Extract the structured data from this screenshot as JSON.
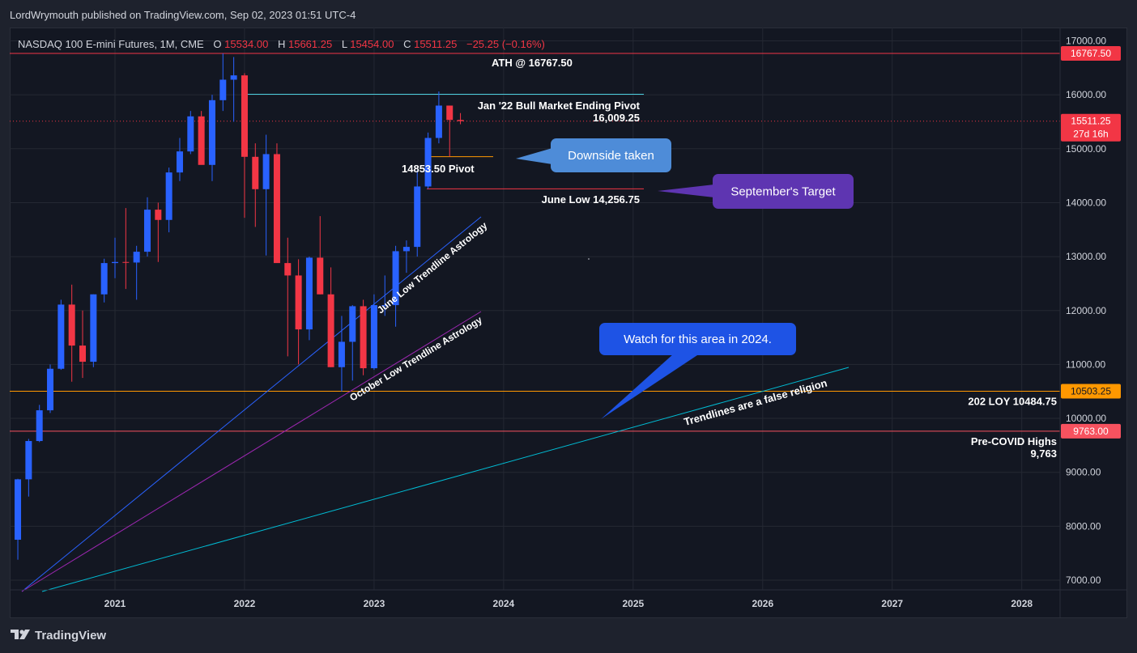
{
  "header": {
    "publisher_line": "LordWrymouth published on TradingView.com, Sep 02, 2023 01:51 UTC-4"
  },
  "legend": {
    "symbol": "NASDAQ 100 E-mini Futures, 1M, CME",
    "o_label": "O",
    "o_value": "15534.00",
    "h_label": "H",
    "h_value": "15661.25",
    "l_label": "L",
    "l_value": "15454.00",
    "c_label": "C",
    "c_value": "15511.25",
    "change": "−25.25 (−0.16%)"
  },
  "footer": {
    "brand": "TradingView",
    "logo_icon": "tradingview-logo-icon"
  },
  "colors": {
    "background": "#131722",
    "up": "#2962ff",
    "down": "#f23645",
    "text": "#d1d4dc",
    "grid": "#242833"
  },
  "chart_data": {
    "type": "candlestick",
    "title": "NASDAQ 100 E-mini Futures, 1M, CME",
    "y_axis": {
      "ticks": [
        "7000.00",
        "8000.00",
        "9000.00",
        "10000.00",
        "11000.00",
        "12000.00",
        "13000.00",
        "14000.00",
        "15000.00",
        "16000.00",
        "17000.00"
      ],
      "range": [
        6800,
        17400
      ]
    },
    "x_axis": {
      "ticks": [
        "2021",
        "2022",
        "2023",
        "2024",
        "2025",
        "2026",
        "2027",
        "2028"
      ],
      "range": [
        "2020-03",
        "2028-04"
      ]
    },
    "grid": true,
    "candles": [
      {
        "t": "2020-04",
        "o": 7750,
        "h": 8880,
        "l": 7380,
        "c": 8870
      },
      {
        "t": "2020-05",
        "o": 8870,
        "h": 9620,
        "l": 8550,
        "c": 9580
      },
      {
        "t": "2020-06",
        "o": 9580,
        "h": 10250,
        "l": 9560,
        "c": 10150
      },
      {
        "t": "2020-07",
        "o": 10150,
        "h": 11000,
        "l": 10100,
        "c": 10920
      },
      {
        "t": "2020-08",
        "o": 10920,
        "h": 12200,
        "l": 10900,
        "c": 12110
      },
      {
        "t": "2020-09",
        "o": 12110,
        "h": 12480,
        "l": 10680,
        "c": 11350
      },
      {
        "t": "2020-10",
        "o": 11350,
        "h": 12000,
        "l": 10750,
        "c": 11050
      },
      {
        "t": "2020-11",
        "o": 11050,
        "h": 12300,
        "l": 10950,
        "c": 12300
      },
      {
        "t": "2020-12",
        "o": 12300,
        "h": 12960,
        "l": 12150,
        "c": 12880
      },
      {
        "t": "2021-01",
        "o": 12880,
        "h": 13350,
        "l": 12600,
        "c": 12900
      },
      {
        "t": "2021-02",
        "o": 12900,
        "h": 13900,
        "l": 12400,
        "c": 12890
      },
      {
        "t": "2021-03",
        "o": 12890,
        "h": 13200,
        "l": 12200,
        "c": 13090
      },
      {
        "t": "2021-04",
        "o": 13090,
        "h": 14100,
        "l": 13000,
        "c": 13870
      },
      {
        "t": "2021-05",
        "o": 13870,
        "h": 14000,
        "l": 12900,
        "c": 13680
      },
      {
        "t": "2021-06",
        "o": 13680,
        "h": 14650,
        "l": 13450,
        "c": 14560
      },
      {
        "t": "2021-07",
        "o": 14560,
        "h": 15200,
        "l": 14400,
        "c": 14950
      },
      {
        "t": "2021-08",
        "o": 14950,
        "h": 15700,
        "l": 14900,
        "c": 15600
      },
      {
        "t": "2021-09",
        "o": 15600,
        "h": 15700,
        "l": 14800,
        "c": 14700
      },
      {
        "t": "2021-10",
        "o": 14700,
        "h": 16000,
        "l": 14400,
        "c": 15900
      },
      {
        "t": "2021-11",
        "o": 15900,
        "h": 16767.5,
        "l": 15700,
        "c": 16280
      },
      {
        "t": "2021-12",
        "o": 16280,
        "h": 16700,
        "l": 15500,
        "c": 16360
      },
      {
        "t": "2022-01",
        "o": 16360,
        "h": 16400,
        "l": 13720,
        "c": 14850
      },
      {
        "t": "2022-02",
        "o": 14850,
        "h": 15100,
        "l": 13550,
        "c": 14250
      },
      {
        "t": "2022-03",
        "o": 14250,
        "h": 15260,
        "l": 13020,
        "c": 14900
      },
      {
        "t": "2022-04",
        "o": 14900,
        "h": 15100,
        "l": 12900,
        "c": 12880
      },
      {
        "t": "2022-05",
        "o": 12880,
        "h": 13350,
        "l": 11150,
        "c": 12650
      },
      {
        "t": "2022-06",
        "o": 12650,
        "h": 12950,
        "l": 11000,
        "c": 11650
      },
      {
        "t": "2022-07",
        "o": 11650,
        "h": 13000,
        "l": 11450,
        "c": 12980
      },
      {
        "t": "2022-08",
        "o": 12980,
        "h": 13750,
        "l": 12300,
        "c": 12300
      },
      {
        "t": "2022-09",
        "o": 12300,
        "h": 12800,
        "l": 10950,
        "c": 10950
      },
      {
        "t": "2022-10",
        "o": 10950,
        "h": 11900,
        "l": 10500,
        "c": 11420
      },
      {
        "t": "2022-11",
        "o": 11420,
        "h": 12100,
        "l": 10700,
        "c": 12080
      },
      {
        "t": "2022-12",
        "o": 12080,
        "h": 12200,
        "l": 10800,
        "c": 10930
      },
      {
        "t": "2023-01",
        "o": 10930,
        "h": 12300,
        "l": 10900,
        "c": 12100
      },
      {
        "t": "2023-02",
        "o": 12100,
        "h": 12650,
        "l": 11900,
        "c": 12100
      },
      {
        "t": "2023-03",
        "o": 12100,
        "h": 13200,
        "l": 11700,
        "c": 13100
      },
      {
        "t": "2023-04",
        "o": 13100,
        "h": 13300,
        "l": 12700,
        "c": 13180
      },
      {
        "t": "2023-05",
        "o": 13180,
        "h": 14600,
        "l": 13000,
        "c": 14300
      },
      {
        "t": "2023-06",
        "o": 14300,
        "h": 15300,
        "l": 14256.75,
        "c": 15200
      },
      {
        "t": "2023-07",
        "o": 15200,
        "h": 16062,
        "l": 15100,
        "c": 15800
      },
      {
        "t": "2023-08",
        "o": 15800,
        "h": 15800,
        "l": 14853.5,
        "c": 15534
      },
      {
        "t": "2023-09",
        "o": 15534,
        "h": 15661.25,
        "l": 15454,
        "c": 15511.25
      }
    ],
    "levels": [
      {
        "price": 16767.5,
        "axis_label": "16767.50",
        "color": "#f23645"
      },
      {
        "price": 10503.25,
        "axis_label": "10503.25",
        "color": "#ff9800"
      },
      {
        "price": 9763,
        "axis_label": "9763.00",
        "color": "#f7525f"
      }
    ],
    "current_price": {
      "label": "15511.25",
      "countdown": "27d 16h",
      "color": "#f23645"
    },
    "annotations": {
      "ath": "ATH @ 16767.50",
      "pivot_title": "Jan '22 Bull Market Ending Pivot",
      "pivot_value": "16,009.25",
      "pivot_1485": "14853.50 Pivot",
      "june_low": "June Low 14,256.75",
      "loy": "202 LOY 10484.75",
      "precovid_1": "Pre-COVID Highs",
      "precovid_2": "9,763",
      "trend_june": "June Low Trendline Astrology",
      "trend_october": "October Low Trendline Astrology",
      "trend_false": "Trendlines are a false religion",
      "callout_downside": "Downside taken",
      "callout_september": "September's Target",
      "callout_watch": "Watch for this area in 2024."
    }
  }
}
